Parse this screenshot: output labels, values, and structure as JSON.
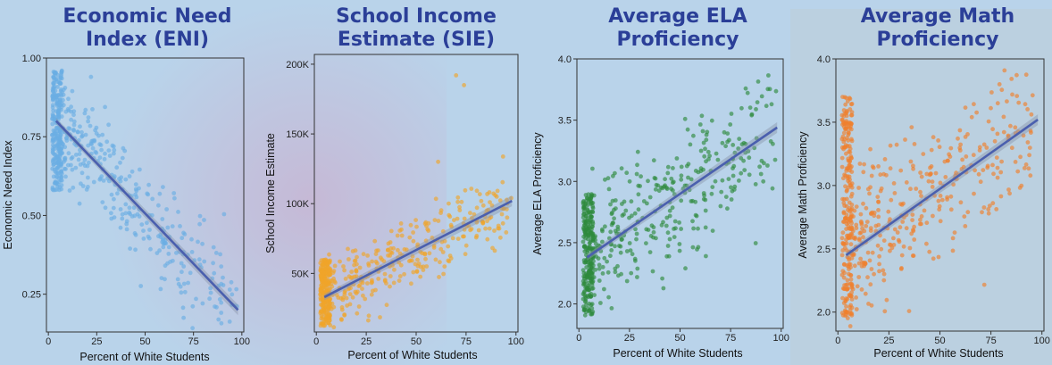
{
  "figure": {
    "background": "#b9d3ea",
    "title_color": "#2b3f98",
    "trend_color": "#4a5fae"
  },
  "chart_data": [
    {
      "type": "scatter",
      "title": [
        "Economic Need",
        "Index (ENI)"
      ],
      "xlabel": "Percent of White Students",
      "ylabel": "Economic Need Index",
      "xlim": [
        -1,
        101
      ],
      "ylim": [
        0.13,
        1.0
      ],
      "xticks": [
        0,
        25,
        50,
        75,
        100
      ],
      "xtick_labels": [
        "0",
        "25",
        "50",
        "75",
        "100"
      ],
      "yticks": [
        0.25,
        0.5,
        0.75,
        1.0
      ],
      "ytick_labels": [
        "0.25",
        "0.50",
        "0.75",
        "1.00"
      ],
      "point_color": "#6aaee3",
      "trend": {
        "x": [
          4,
          98
        ],
        "y": [
          0.8,
          0.2
        ]
      },
      "cloud": {
        "dense_x": [
          2,
          7
        ],
        "dense_y": [
          0.58,
          0.96
        ],
        "n_dense": 230,
        "n_spread": 330,
        "spread_noise": 0.085
      },
      "grid": false,
      "legend": "none"
    },
    {
      "type": "scatter",
      "title": [
        "School Income",
        "Estimate (SIE)"
      ],
      "xlabel": "Percent of White Students",
      "ylabel": "School Income Estimate",
      "xlim": [
        -1,
        101
      ],
      "ylim": [
        8000,
        207000
      ],
      "xticks": [
        0,
        25,
        50,
        75,
        100
      ],
      "xtick_labels": [
        "0",
        "25",
        "50",
        "75",
        "100"
      ],
      "yticks": [
        50000,
        100000,
        150000,
        200000
      ],
      "ytick_labels": [
        "50K",
        "100K",
        "150K",
        "200K"
      ],
      "point_color": "#f0a52a",
      "trend": {
        "x": [
          4,
          98
        ],
        "y": [
          33000,
          102000
        ]
      },
      "cloud": {
        "dense_x": [
          2,
          7
        ],
        "dense_y": [
          12000,
          60000
        ],
        "n_dense": 230,
        "n_spread": 300,
        "spread_noise": 13000
      },
      "outliers": [
        [
          70,
          192000
        ],
        [
          74,
          185000
        ],
        [
          61,
          130000
        ]
      ],
      "grid": false,
      "legend": "none"
    },
    {
      "type": "scatter",
      "title": [
        "Average ELA",
        "Proficiency"
      ],
      "xlabel": "Percent of White Students",
      "ylabel": "Average ELA Proficiency",
      "xlim": [
        -1,
        101
      ],
      "ylim": [
        1.8,
        4.0
      ],
      "xticks": [
        0,
        25,
        50,
        75,
        100
      ],
      "xtick_labels": [
        "0",
        "25",
        "50",
        "75",
        "100"
      ],
      "yticks": [
        2.0,
        2.5,
        3.0,
        3.5,
        4.0
      ],
      "ytick_labels": [
        "2.0",
        "2.5",
        "3.0",
        "3.5",
        "4.0"
      ],
      "point_color": "#2e8b3e",
      "trend": {
        "x": [
          4,
          98
        ],
        "y": [
          2.38,
          3.44
        ]
      },
      "cloud": {
        "dense_x": [
          2,
          7
        ],
        "dense_y": [
          1.9,
          2.9
        ],
        "n_dense": 230,
        "n_spread": 330,
        "spread_noise": 0.27
      },
      "grid": false,
      "legend": "none"
    },
    {
      "type": "scatter",
      "title": [
        "Average Math",
        "Proficiency"
      ],
      "xlabel": "Percent of White Students",
      "ylabel": "Average Math Proficiency",
      "xlim": [
        -1,
        101
      ],
      "ylim": [
        1.85,
        4.0
      ],
      "xticks": [
        0,
        25,
        50,
        75,
        100
      ],
      "xtick_labels": [
        "0",
        "25",
        "50",
        "75",
        "100"
      ],
      "yticks": [
        2.0,
        2.5,
        3.0,
        3.5,
        4.0
      ],
      "ytick_labels": [
        "2.0",
        "2.5",
        "3.0",
        "3.5",
        "4.0"
      ],
      "point_color": "#f07f2c",
      "trend": {
        "x": [
          4,
          98
        ],
        "y": [
          2.45,
          3.52
        ]
      },
      "cloud": {
        "dense_x": [
          2,
          7
        ],
        "dense_y": [
          1.95,
          3.7
        ],
        "n_dense": 230,
        "n_spread": 330,
        "spread_noise": 0.3
      },
      "grid": false,
      "legend": "none"
    }
  ]
}
